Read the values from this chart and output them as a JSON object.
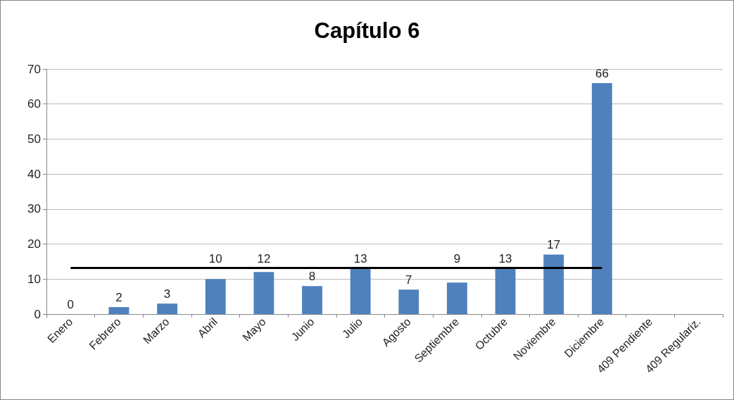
{
  "chart_data": {
    "type": "bar",
    "title": "Capítulo 6",
    "categories": [
      "Enero",
      "Febrero",
      "Marzo",
      "Abril",
      "Mayo",
      "Junio",
      "Julio",
      "Agosto",
      "Septiembre",
      "Octubre",
      "Noviembre",
      "Diciembre",
      "409 Pendiente",
      "409 Regulariz."
    ],
    "values": [
      0,
      2,
      3,
      10,
      12,
      8,
      13,
      7,
      9,
      13,
      17,
      66,
      null,
      null
    ],
    "color": "#4f81bd",
    "data_labels": true,
    "ylim": [
      0,
      70
    ],
    "yticks": [
      0,
      10,
      20,
      30,
      40,
      50,
      60,
      70
    ],
    "grid": "y",
    "ref_lines": [
      {
        "axis": "y",
        "value": 13.3,
        "color": "#000000"
      }
    ]
  }
}
